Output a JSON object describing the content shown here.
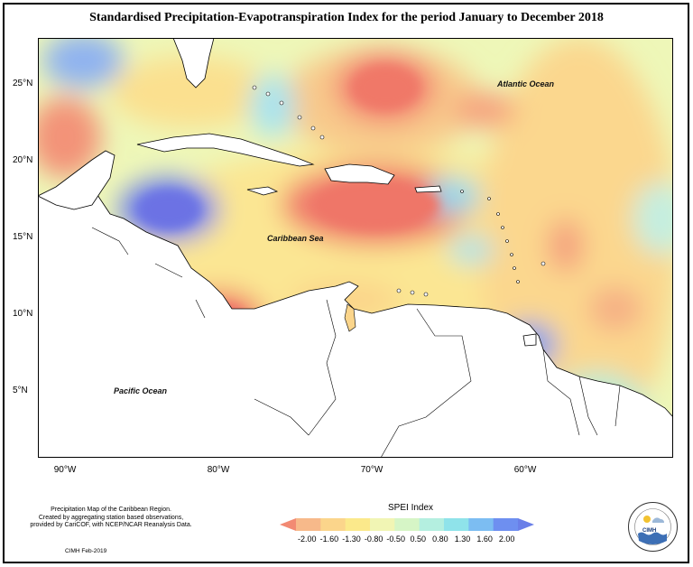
{
  "title": "Standardised Precipitation-Evapotranspiration Index for the period January to December 2018",
  "lat_labels": [
    "25°N",
    "20°N",
    "15°N",
    "10°N",
    "5°N"
  ],
  "lon_labels": [
    "90°W",
    "80°W",
    "70°W",
    "60°W"
  ],
  "ocean_labels": {
    "atlantic": "Atlantic Ocean",
    "caribbean": "Caribbean Sea",
    "pacific": "Pacific Ocean"
  },
  "footnote": {
    "line1": "Precipitation Map of the Caribbean Region.",
    "line2": "Created by aggregating station based observations,",
    "line3": "provided by CariCOF, with NCEP/NCAR Reanalysis Data.",
    "credit": "CIMH Feb-2019"
  },
  "legend": {
    "title": "SPEI Index",
    "ticks": [
      "-2.00",
      "-1.60",
      "-1.30",
      "-0.80",
      "-0.50",
      "0.50",
      "0.80",
      "1.30",
      "1.60",
      "2.00"
    ],
    "colors": [
      "#f28a73",
      "#f7b98a",
      "#fbd58b",
      "#fbe98b",
      "#f1f5b4",
      "#d6f5c6",
      "#b4efe0",
      "#8fe3ea",
      "#7cbdf2",
      "#6e8ff0",
      "#6a7fe8"
    ]
  },
  "logo": {
    "text": "CIMH",
    "ring_text": "CARIBBEAN INSTITUTE FOR METEOROLOGY AND HYDROLOGY"
  }
}
